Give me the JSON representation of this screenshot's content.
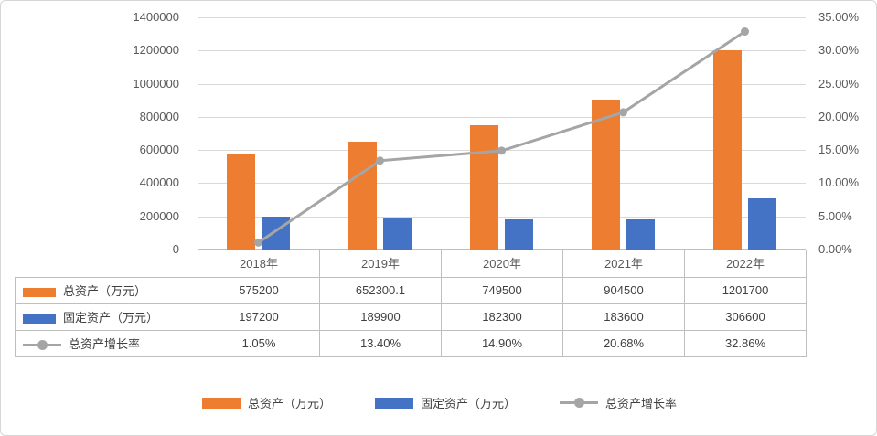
{
  "chart_data": {
    "type": "combo",
    "categories": [
      "2018年",
      "2019年",
      "2020年",
      "2021年",
      "2022年"
    ],
    "series": [
      {
        "name": "总资产（万元）",
        "type": "bar",
        "axis": "left",
        "color": "#ED7D31",
        "values": [
          575200,
          652300.1,
          749500,
          904500,
          1201700
        ]
      },
      {
        "name": "固定资产（万元）",
        "type": "bar",
        "axis": "left",
        "color": "#4472C4",
        "values": [
          197200,
          189900,
          182300,
          183600,
          306600
        ]
      },
      {
        "name": "总资产增长率",
        "type": "line",
        "axis": "right",
        "color": "#A5A5A5",
        "values": [
          1.05,
          13.4,
          14.9,
          20.68,
          32.86
        ]
      }
    ],
    "left_axis": {
      "min": 0,
      "max": 1400000,
      "step": 200000,
      "tick_labels": [
        "0",
        "200000",
        "400000",
        "600000",
        "800000",
        "1000000",
        "1200000",
        "1400000"
      ]
    },
    "right_axis": {
      "min": 0,
      "max": 35,
      "step": 5,
      "tick_labels": [
        "0.00%",
        "5.00%",
        "10.00%",
        "15.00%",
        "20.00%",
        "25.00%",
        "30.00%",
        "35.00%"
      ]
    },
    "grid": true,
    "legend_position": "bottom"
  },
  "table": {
    "rows": [
      {
        "label": "总资产（万元）",
        "marker": "rect",
        "color": "#ED7D31",
        "cells": [
          "575200",
          "652300.1",
          "749500",
          "904500",
          "1201700"
        ]
      },
      {
        "label": "固定资产（万元）",
        "marker": "rect",
        "color": "#4472C4",
        "cells": [
          "197200",
          "189900",
          "182300",
          "183600",
          "306600"
        ]
      },
      {
        "label": "总资产增长率",
        "marker": "line-circle",
        "color": "#A5A5A5",
        "cells": [
          "1.05%",
          "13.40%",
          "14.90%",
          "20.68%",
          "32.86%"
        ]
      }
    ]
  },
  "legend": {
    "items": [
      {
        "key": "total-assets",
        "label": "总资产（万元）",
        "marker": "rect",
        "color": "#ED7D31"
      },
      {
        "key": "fixed-assets",
        "label": "固定资产（万元）",
        "marker": "rect",
        "color": "#4472C4"
      },
      {
        "key": "growth-rate",
        "label": "总资产增长率",
        "marker": "line-circle",
        "color": "#A5A5A5"
      }
    ]
  },
  "colors": {
    "grid": "#D9D9D9",
    "axis_text": "#595959",
    "border": "#BFBFBF"
  }
}
